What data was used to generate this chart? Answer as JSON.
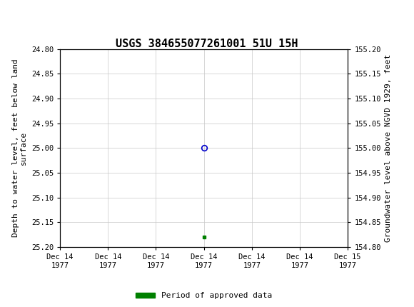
{
  "title": "USGS 384655077261001 51U 15H",
  "xlabel_ticks": [
    "Dec 14\n1977",
    "Dec 14\n1977",
    "Dec 14\n1977",
    "Dec 14\n1977",
    "Dec 14\n1977",
    "Dec 14\n1977",
    "Dec 15\n1977"
  ],
  "ylabel_left": "Depth to water level, feet below land\nsurface",
  "ylabel_right": "Groundwater level above NGVD 1929, feet",
  "ylim_left": [
    25.2,
    24.8
  ],
  "ylim_right": [
    154.8,
    155.2
  ],
  "yticks_left": [
    24.8,
    24.85,
    24.9,
    24.95,
    25.0,
    25.05,
    25.1,
    25.15,
    25.2
  ],
  "yticks_right": [
    155.2,
    155.15,
    155.1,
    155.05,
    155.0,
    154.95,
    154.9,
    154.85,
    154.8
  ],
  "data_point_x": 3,
  "data_point_y": 25.0,
  "data_point_color": "#0000cc",
  "data_point_marker": "o",
  "approved_bar_x": 3,
  "approved_bar_y": 25.18,
  "approved_bar_color": "#008000",
  "header_color": "#1a6b3c",
  "header_text_color": "#ffffff",
  "background_color": "#ffffff",
  "grid_color": "#c8c8c8",
  "title_fontsize": 11,
  "axis_fontsize": 8,
  "tick_fontsize": 7.5,
  "legend_label": "Period of approved data",
  "xlim": [
    0,
    6
  ],
  "xtick_positions": [
    0,
    1,
    2,
    3,
    4,
    5,
    6
  ]
}
